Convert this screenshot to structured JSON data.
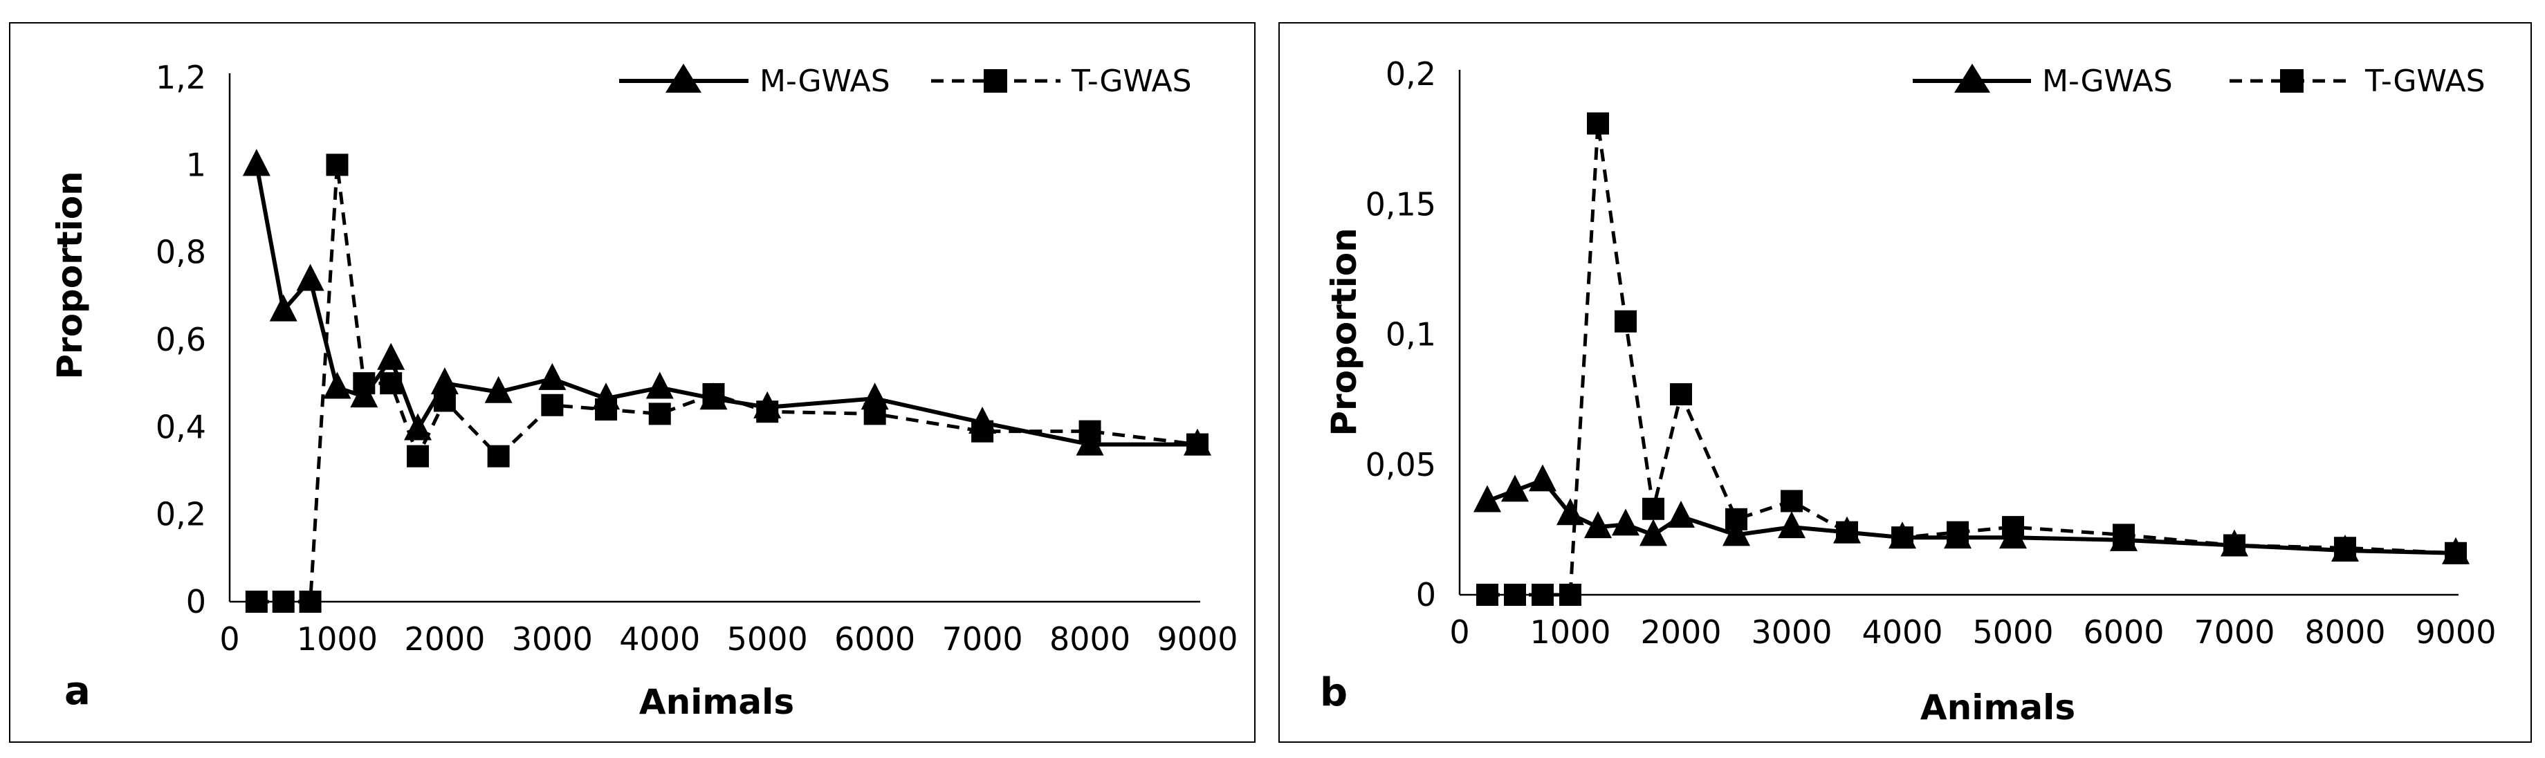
{
  "chart_data": [
    {
      "type": "line",
      "panel_label": "a",
      "xlabel": "Animals",
      "ylabel": "Proportion",
      "xlim": [
        0,
        9000
      ],
      "ylim": [
        0,
        1.2
      ],
      "x_ticks": [
        "0",
        "1000",
        "2000",
        "3000",
        "4000",
        "5000",
        "6000",
        "7000",
        "8000",
        "9000"
      ],
      "y_ticks": [
        "0",
        "0,2",
        "0,4",
        "0,6",
        "0,8",
        "1",
        "1,2"
      ],
      "x_tick_values": [
        0,
        1000,
        2000,
        3000,
        4000,
        5000,
        6000,
        7000,
        8000,
        9000
      ],
      "y_tick_values": [
        0,
        0.2,
        0.4,
        0.6,
        0.8,
        1.0,
        1.2
      ],
      "legend_position": "top-right",
      "series": [
        {
          "name": "M-GWAS",
          "line": "solid",
          "marker": "triangle",
          "x": [
            250,
            500,
            750,
            1000,
            1250,
            1500,
            1750,
            2000,
            2500,
            3000,
            3500,
            4000,
            4500,
            5000,
            6000,
            7000,
            8000,
            9000
          ],
          "values": [
            1.0,
            0.667,
            0.737,
            0.49,
            0.47,
            0.556,
            0.395,
            0.5,
            0.48,
            0.51,
            0.465,
            0.49,
            0.465,
            0.445,
            0.465,
            0.41,
            0.36,
            0.36
          ]
        },
        {
          "name": "T-GWAS",
          "line": "dashed",
          "marker": "square",
          "x": [
            250,
            500,
            750,
            1000,
            1250,
            1500,
            1750,
            2000,
            2500,
            3000,
            3500,
            4000,
            4500,
            5000,
            6000,
            7000,
            8000,
            9000
          ],
          "values": [
            0,
            0,
            0,
            1.0,
            0.5,
            0.5,
            0.333,
            0.46,
            0.333,
            0.45,
            0.44,
            0.43,
            0.475,
            0.435,
            0.43,
            0.39,
            0.39,
            0.36
          ]
        }
      ]
    },
    {
      "type": "line",
      "panel_label": "b",
      "xlabel": "Animals",
      "ylabel": "Proportion",
      "xlim": [
        0,
        9000
      ],
      "ylim": [
        0,
        0.2
      ],
      "x_ticks": [
        "0",
        "1000",
        "2000",
        "3000",
        "4000",
        "5000",
        "6000",
        "7000",
        "8000",
        "9000"
      ],
      "y_ticks": [
        "0",
        "0,05",
        "0,1",
        "0,15",
        "0,2"
      ],
      "x_tick_values": [
        0,
        1000,
        2000,
        3000,
        4000,
        5000,
        6000,
        7000,
        8000,
        9000
      ],
      "y_tick_values": [
        0,
        0.05,
        0.1,
        0.15,
        0.2
      ],
      "legend_position": "top-right",
      "series": [
        {
          "name": "M-GWAS",
          "line": "solid",
          "marker": "triangle",
          "x": [
            250,
            500,
            750,
            1000,
            1250,
            1500,
            1750,
            2000,
            2500,
            3000,
            3500,
            4000,
            4500,
            5000,
            6000,
            7000,
            8000,
            9000
          ],
          "values": [
            0.036,
            0.04,
            0.044,
            0.031,
            0.026,
            0.027,
            0.023,
            0.03,
            0.023,
            0.026,
            0.024,
            0.022,
            0.022,
            0.022,
            0.021,
            0.019,
            0.017,
            0.016
          ]
        },
        {
          "name": "T-GWAS",
          "line": "dashed",
          "marker": "square",
          "x": [
            250,
            500,
            750,
            1000,
            1250,
            1500,
            1750,
            2000,
            2500,
            3000,
            3500,
            4000,
            4500,
            5000,
            6000,
            7000,
            8000,
            9000
          ],
          "values": [
            0,
            0,
            0,
            0,
            0.181,
            0.105,
            0.033,
            0.077,
            0.029,
            0.036,
            0.024,
            0.022,
            0.024,
            0.026,
            0.023,
            0.019,
            0.018,
            0.016
          ]
        }
      ]
    }
  ]
}
